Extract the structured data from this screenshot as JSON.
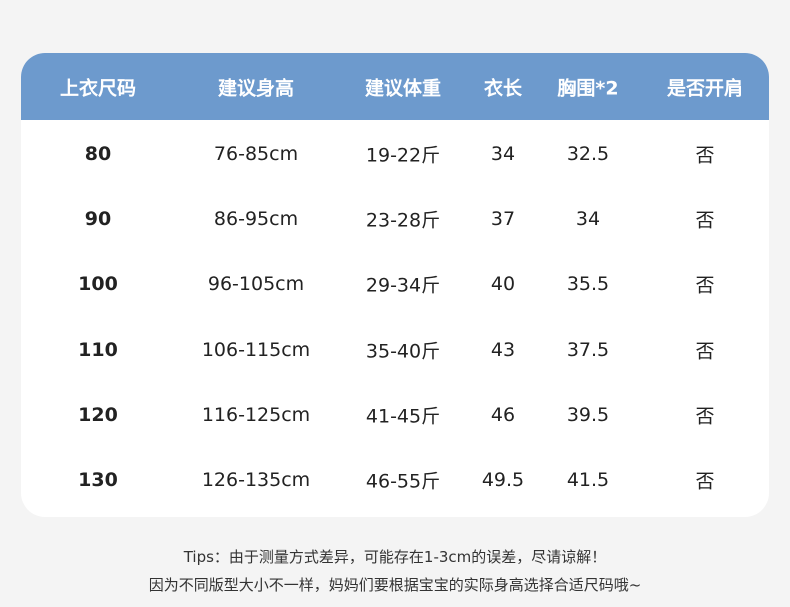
{
  "table": {
    "headers": [
      "上衣尺码",
      "建议身高",
      "建议体重",
      "衣长",
      "胸围*2",
      "是否开肩"
    ],
    "rows": [
      [
        "80",
        "76-85cm",
        "19-22斤",
        "34",
        "32.5",
        "否"
      ],
      [
        "90",
        "86-95cm",
        "23-28斤",
        "37",
        "34",
        "否"
      ],
      [
        "100",
        "96-105cm",
        "29-34斤",
        "40",
        "35.5",
        "否"
      ],
      [
        "110",
        "106-115cm",
        "35-40斤",
        "43",
        "37.5",
        "否"
      ],
      [
        "120",
        "116-125cm",
        "41-45斤",
        "46",
        "39.5",
        "否"
      ],
      [
        "130",
        "126-135cm",
        "46-55斤",
        "49.5",
        "41.5",
        "否"
      ]
    ]
  },
  "tips": {
    "line1": "Tips：由于测量方式差异，可能存在1-3cm的误差，尽请谅解！",
    "line2": "因为不同版型大小不一样，妈妈们要根据宝宝的实际身高选择合适尺码哦~"
  },
  "colors": {
    "header": "#6d9acd",
    "background": "#f4f4f4"
  }
}
